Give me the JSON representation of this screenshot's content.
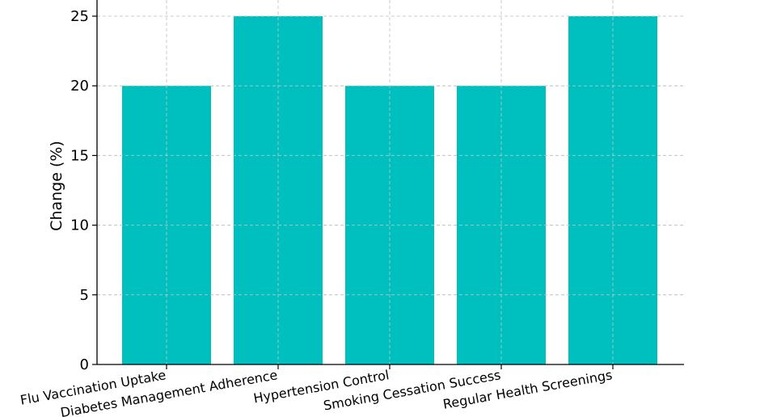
{
  "chart_data": {
    "type": "bar",
    "categories": [
      "Flu Vaccination Uptake",
      "Diabetes Management Adherence",
      "Hypertension Control",
      "Smoking Cessation Success",
      "Regular Health Screenings"
    ],
    "values": [
      20,
      25,
      20,
      20,
      25
    ],
    "title": "",
    "xlabel": "",
    "ylabel": "Change (%)",
    "ylim": [
      0,
      25
    ],
    "yticks": [
      0,
      5,
      10,
      15,
      20,
      25
    ],
    "grid": true,
    "legend": "none",
    "bar_color": "#00BFBF",
    "grid_color": "#c8c8c8"
  }
}
